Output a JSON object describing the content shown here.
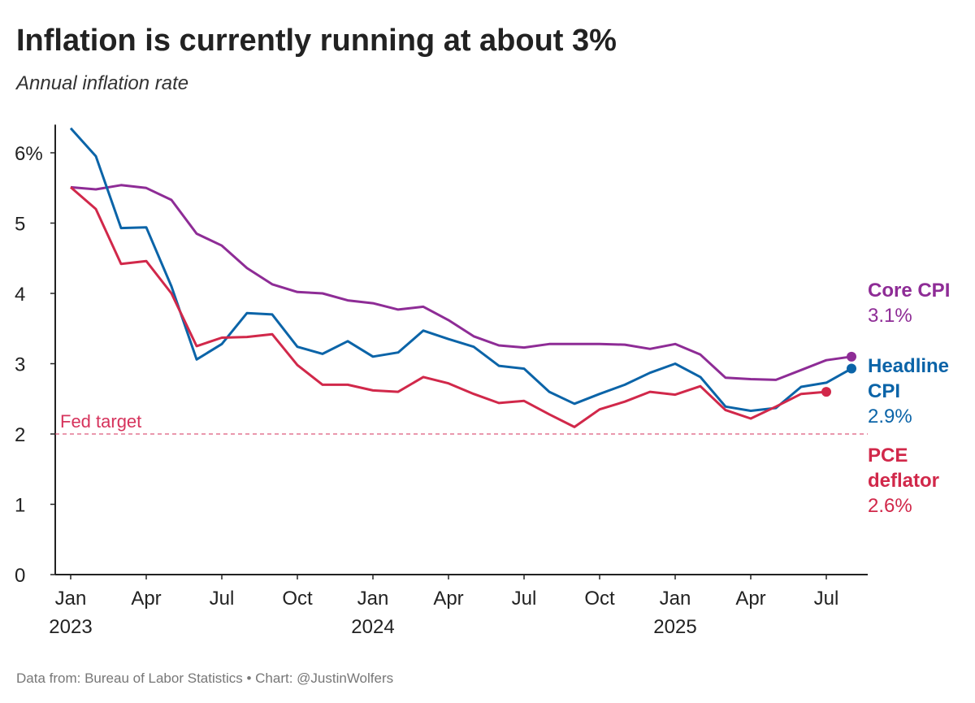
{
  "chart_data": {
    "type": "line",
    "title": "Inflation is currently running at about 3%",
    "subtitle": "Annual inflation rate",
    "source": "Data from: Bureau of Labor Statistics  • Chart: @JustinWolfers",
    "x": [
      "2023-01",
      "2023-02",
      "2023-03",
      "2023-04",
      "2023-05",
      "2023-06",
      "2023-07",
      "2023-08",
      "2023-09",
      "2023-10",
      "2023-11",
      "2023-12",
      "2024-01",
      "2024-02",
      "2024-03",
      "2024-04",
      "2024-05",
      "2024-06",
      "2024-07",
      "2024-08",
      "2024-09",
      "2024-10",
      "2024-11",
      "2024-12",
      "2025-01",
      "2025-02",
      "2025-03",
      "2025-04",
      "2025-05",
      "2025-06",
      "2025-07",
      "2025-08"
    ],
    "xticks": [
      {
        "value": "2023-01",
        "label": "Jan",
        "year": "2023"
      },
      {
        "value": "2023-04",
        "label": "Apr"
      },
      {
        "value": "2023-07",
        "label": "Jul"
      },
      {
        "value": "2023-10",
        "label": "Oct"
      },
      {
        "value": "2024-01",
        "label": "Jan",
        "year": "2024"
      },
      {
        "value": "2024-04",
        "label": "Apr"
      },
      {
        "value": "2024-07",
        "label": "Jul"
      },
      {
        "value": "2024-10",
        "label": "Oct"
      },
      {
        "value": "2025-01",
        "label": "Jan",
        "year": "2025"
      },
      {
        "value": "2025-04",
        "label": "Apr"
      },
      {
        "value": "2025-07",
        "label": "Jul"
      }
    ],
    "ylim": [
      0,
      6.4
    ],
    "yticks": [
      0,
      1,
      2,
      3,
      4,
      5,
      {
        "value": 6,
        "label": "6%"
      }
    ],
    "fed_target": {
      "value": 2,
      "label": "Fed target",
      "color": "#d6335c"
    },
    "series": [
      {
        "name": "Core CPI",
        "color": "#8e2c96",
        "value_label": "3.1%",
        "values": [
          5.51,
          5.48,
          5.54,
          5.5,
          5.33,
          4.85,
          4.68,
          4.36,
          4.13,
          4.02,
          4.0,
          3.9,
          3.86,
          3.77,
          3.81,
          3.62,
          3.39,
          3.26,
          3.23,
          3.28,
          3.28,
          3.28,
          3.27,
          3.21,
          3.28,
          3.13,
          2.8,
          2.78,
          2.77,
          2.91,
          3.05,
          3.1
        ]
      },
      {
        "name": "Headline CPI",
        "color": "#0b64a8",
        "value_label": "2.9%",
        "values": [
          6.35,
          5.95,
          4.93,
          4.94,
          4.1,
          3.06,
          3.28,
          3.72,
          3.7,
          3.24,
          3.14,
          3.32,
          3.1,
          3.16,
          3.47,
          3.35,
          3.24,
          2.97,
          2.93,
          2.6,
          2.43,
          2.57,
          2.7,
          2.87,
          3.0,
          2.81,
          2.39,
          2.33,
          2.37,
          2.67,
          2.73,
          2.93
        ]
      },
      {
        "name": "PCE deflator",
        "color": "#d1284a",
        "value_label": "2.6%",
        "values": [
          5.51,
          5.2,
          4.42,
          4.46,
          4.0,
          3.25,
          3.37,
          3.38,
          3.42,
          2.98,
          2.7,
          2.7,
          2.62,
          2.6,
          2.81,
          2.72,
          2.57,
          2.44,
          2.47,
          2.28,
          2.1,
          2.35,
          2.46,
          2.6,
          2.56,
          2.68,
          2.34,
          2.22,
          2.39,
          2.57,
          2.6,
          null
        ]
      }
    ]
  }
}
